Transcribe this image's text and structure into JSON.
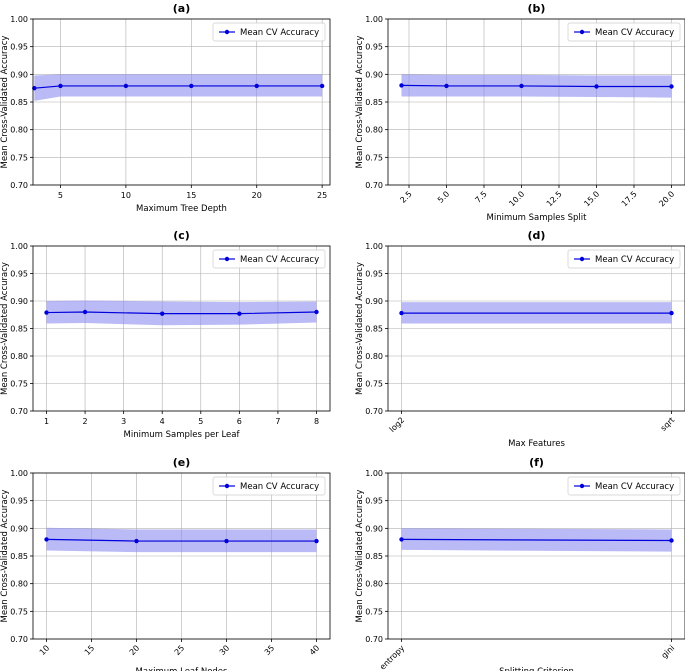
{
  "chart_data": [
    {
      "panel": "(a)",
      "type": "line",
      "x": [
        3,
        5,
        10,
        15,
        20,
        25
      ],
      "y": [
        0.875,
        0.879,
        0.879,
        0.879,
        0.879,
        0.879
      ],
      "band_low": [
        0.852,
        0.86,
        0.86,
        0.86,
        0.86,
        0.86
      ],
      "band_high": [
        0.898,
        0.9,
        0.9,
        0.9,
        0.9,
        0.9
      ],
      "xticks": [
        5,
        10,
        15,
        20,
        25
      ],
      "xtick_labels": [
        "5",
        "10",
        "15",
        "20",
        "25"
      ],
      "xlim": [
        2.9,
        25.6
      ],
      "ylim": [
        0.7,
        1.0
      ],
      "yticks": [
        "0.70",
        "0.75",
        "0.80",
        "0.85",
        "0.90",
        "0.95",
        "1.00"
      ],
      "xlabel": "Maximum Tree Depth",
      "ylabel": "Mean Cross-Validated Accuracy",
      "legend": "Mean CV Accuracy",
      "xtick_rotate": false
    },
    {
      "panel": "(b)",
      "type": "line",
      "x": [
        2,
        5,
        10,
        15,
        20
      ],
      "y": [
        0.88,
        0.879,
        0.879,
        0.878,
        0.878
      ],
      "band_low": [
        0.86,
        0.86,
        0.86,
        0.859,
        0.858
      ],
      "band_high": [
        0.9,
        0.899,
        0.899,
        0.898,
        0.898
      ],
      "xticks": [
        2.5,
        5.0,
        7.5,
        10.0,
        12.5,
        15.0,
        17.5,
        20.0
      ],
      "xtick_labels": [
        "2.5",
        "5.0",
        "7.5",
        "10.0",
        "12.5",
        "15.0",
        "17.5",
        "20.0"
      ],
      "xlim": [
        1.1,
        20.9
      ],
      "ylim": [
        0.7,
        1.0
      ],
      "yticks": [
        "0.70",
        "0.75",
        "0.80",
        "0.85",
        "0.90",
        "0.95",
        "1.00"
      ],
      "xlabel": "Minimum Samples Split",
      "ylabel": "Mean Cross-Validated Accuracy",
      "legend": "Mean CV Accuracy",
      "xtick_rotate": true
    },
    {
      "panel": "(c)",
      "type": "line",
      "x": [
        1,
        2,
        4,
        6,
        8
      ],
      "y": [
        0.879,
        0.88,
        0.877,
        0.877,
        0.88
      ],
      "band_low": [
        0.859,
        0.86,
        0.856,
        0.857,
        0.861
      ],
      "band_high": [
        0.9,
        0.901,
        0.899,
        0.898,
        0.899
      ],
      "xticks": [
        1,
        2,
        3,
        4,
        5,
        6,
        7,
        8
      ],
      "xtick_labels": [
        "1",
        "2",
        "3",
        "4",
        "5",
        "6",
        "7",
        "8"
      ],
      "xlim": [
        0.65,
        8.35
      ],
      "ylim": [
        0.7,
        1.0
      ],
      "yticks": [
        "0.70",
        "0.75",
        "0.80",
        "0.85",
        "0.90",
        "0.95",
        "1.00"
      ],
      "xlabel": "Minimum Samples per Leaf",
      "ylabel": "Mean Cross-Validated Accuracy",
      "legend": "Mean CV Accuracy",
      "xtick_rotate": false
    },
    {
      "panel": "(d)",
      "type": "line",
      "x": [
        0,
        1
      ],
      "y": [
        0.878,
        0.878
      ],
      "band_low": [
        0.859,
        0.859
      ],
      "band_high": [
        0.898,
        0.898
      ],
      "xticks": [
        0,
        1
      ],
      "xtick_labels": [
        "log2",
        "sqrt"
      ],
      "xlim": [
        -0.05,
        1.05
      ],
      "ylim": [
        0.7,
        1.0
      ],
      "yticks": [
        "0.70",
        "0.75",
        "0.80",
        "0.85",
        "0.90",
        "0.95",
        "1.00"
      ],
      "xlabel": "Max Features",
      "ylabel": "Mean Cross-Validated Accuracy",
      "legend": "Mean CV Accuracy",
      "xtick_rotate": true
    },
    {
      "panel": "(e)",
      "type": "line",
      "x": [
        10,
        20,
        30,
        40
      ],
      "y": [
        0.88,
        0.877,
        0.877,
        0.877
      ],
      "band_low": [
        0.86,
        0.857,
        0.857,
        0.857
      ],
      "band_high": [
        0.901,
        0.898,
        0.898,
        0.898
      ],
      "xticks": [
        10,
        15,
        20,
        25,
        30,
        35,
        40
      ],
      "xtick_labels": [
        "10",
        "15",
        "20",
        "25",
        "30",
        "35",
        "40"
      ],
      "xlim": [
        8.5,
        41.5
      ],
      "ylim": [
        0.7,
        1.0
      ],
      "yticks": [
        "0.70",
        "0.75",
        "0.80",
        "0.85",
        "0.90",
        "0.95",
        "1.00"
      ],
      "xlabel": "Maximum Leaf Nodes",
      "ylabel": "Mean Cross-Validated Accuracy",
      "legend": "Mean CV Accuracy",
      "xtick_rotate": true
    },
    {
      "panel": "(f)",
      "type": "line",
      "x": [
        0,
        1
      ],
      "y": [
        0.88,
        0.878
      ],
      "band_low": [
        0.861,
        0.858
      ],
      "band_high": [
        0.9,
        0.898
      ],
      "xticks": [
        0,
        1
      ],
      "xtick_labels": [
        "entropy",
        "gini"
      ],
      "xlim": [
        -0.05,
        1.05
      ],
      "ylim": [
        0.7,
        1.0
      ],
      "yticks": [
        "0.70",
        "0.75",
        "0.80",
        "0.85",
        "0.90",
        "0.95",
        "1.00"
      ],
      "xlabel": "Splitting Criterion",
      "ylabel": "Mean Cross-Validated Accuracy",
      "legend": "Mean CV Accuracy",
      "xtick_rotate": true
    }
  ],
  "colors": {
    "line": "#0000dd",
    "band": "#8c8cf0",
    "grid": "#b0b0b0",
    "axis": "#000000"
  }
}
